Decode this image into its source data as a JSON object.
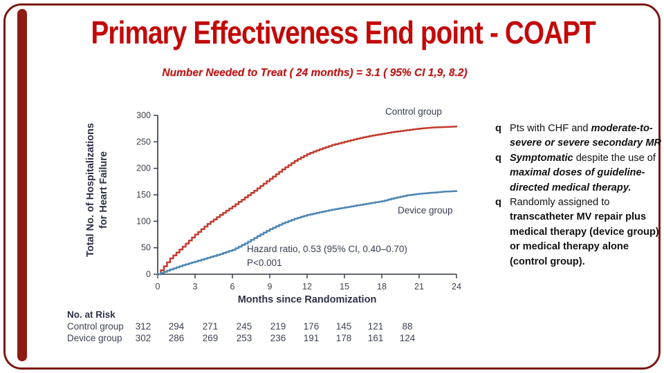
{
  "slide": {
    "title": "Primary Effectiveness End point - COAPT",
    "subtitle": "Number Needed to Treat ( 24 months) = 3.1 ( 95% CI 1,9, 8.2)",
    "title_color": "#c30808",
    "subtitle_color": "#c01414",
    "frame_color": "#7a1811",
    "accent_bar_color": "#8d1c12"
  },
  "chart_data": {
    "type": "line",
    "subtype": "cumulative-events-step-curves",
    "xlabel": "Months since Randomization",
    "ylabel_line1": "Total No. of Hospitalizations",
    "ylabel_line2": "for Heart Failure",
    "xlim": [
      0,
      24
    ],
    "ylim": [
      0,
      300
    ],
    "xticks": [
      0,
      3,
      6,
      9,
      12,
      15,
      18,
      21,
      24
    ],
    "yticks": [
      0,
      50,
      100,
      150,
      200,
      250,
      300
    ],
    "grid": false,
    "legend_position": "labels-at-curves",
    "annotation": [
      "Hazard ratio, 0.53 (95% CI, 0.40–0.70)",
      "P<0.001"
    ],
    "series": [
      {
        "name": "Control group",
        "color": "#c23b2e",
        "x": [
          0,
          1,
          2,
          3,
          4,
          5,
          6,
          7,
          8,
          9,
          10,
          11,
          12,
          13,
          14,
          15,
          16,
          17,
          18,
          19,
          20,
          21,
          22,
          23,
          24
        ],
        "y": [
          0,
          30,
          52,
          75,
          95,
          112,
          128,
          145,
          162,
          180,
          198,
          214,
          227,
          236,
          244,
          250,
          256,
          261,
          265,
          269,
          272,
          275,
          277,
          278,
          279
        ]
      },
      {
        "name": "Device group",
        "color": "#4d86b5",
        "x": [
          0,
          1,
          2,
          3,
          4,
          5,
          6,
          7,
          8,
          9,
          10,
          11,
          12,
          13,
          14,
          15,
          16,
          17,
          18,
          19,
          20,
          21,
          22,
          23,
          24
        ],
        "y": [
          0,
          9,
          17,
          24,
          31,
          38,
          46,
          58,
          72,
          85,
          96,
          105,
          112,
          117,
          122,
          126,
          130,
          134,
          138,
          144,
          149,
          152,
          154,
          156,
          157
        ]
      }
    ],
    "risk_table": {
      "title": "No. at Risk",
      "rows": [
        {
          "label": "Control group",
          "values": [
            "312",
            "294",
            "271",
            "245",
            "219",
            "176",
            "145",
            "121",
            "88"
          ]
        },
        {
          "label": "Device group",
          "values": [
            "302",
            "286",
            "269",
            "253",
            "236",
            "191",
            "178",
            "161",
            "124"
          ]
        }
      ]
    }
  },
  "bullets": {
    "marker": "q",
    "items": [
      {
        "lines": [
          [
            {
              "t": "Pts with CHF and ",
              "s": "n"
            },
            {
              "t": "moderate-to-",
              "s": "bi"
            }
          ],
          [
            {
              "t": "severe or severe secondary MR",
              "s": "bi"
            }
          ]
        ]
      },
      {
        "lines": [
          [
            {
              "t": "Symptomatic",
              "s": "bi"
            },
            {
              "t": " despite the use of",
              "s": "n"
            }
          ],
          [
            {
              "t": "maximal doses of guideline-",
              "s": "bi"
            }
          ],
          [
            {
              "t": "directed medical therapy.",
              "s": "bi"
            }
          ]
        ]
      },
      {
        "lines": [
          [
            {
              "t": "Randomly assigned to",
              "s": "n"
            }
          ],
          [
            {
              "t": "transcatheter MV repair  plus",
              "s": "b"
            }
          ],
          [
            {
              "t": "medical therapy (device group)",
              "s": "b"
            }
          ],
          [
            {
              "t": "or medical therapy alone",
              "s": "b"
            }
          ],
          [
            {
              "t": "(control group).",
              "s": "b"
            }
          ]
        ]
      }
    ]
  }
}
